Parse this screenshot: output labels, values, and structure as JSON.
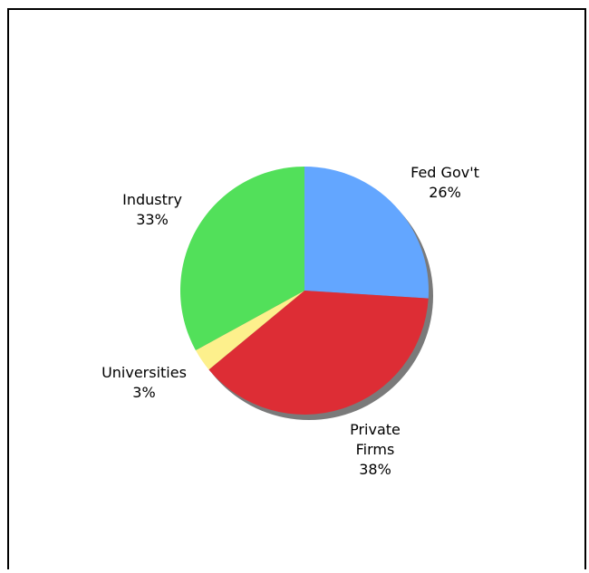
{
  "chart_data": {
    "type": "pie",
    "title": "",
    "shadow": true,
    "legend": "none",
    "slices": [
      {
        "label": "Fed Gov't",
        "label_lines": [
          "Fed Gov't"
        ],
        "value": 26,
        "display": "26%",
        "color": "#63a6ff"
      },
      {
        "label": "Private Firms",
        "label_lines": [
          "Private",
          "Firms"
        ],
        "value": 38,
        "display": "38%",
        "color": "#dd2d35"
      },
      {
        "label": "Universities",
        "label_lines": [
          "Universities"
        ],
        "value": 3,
        "display": "3%",
        "color": "#fdf08c"
      },
      {
        "label": "Industry",
        "label_lines": [
          "Industry"
        ],
        "value": 33,
        "display": "33%",
        "color": "#52e05a"
      }
    ]
  }
}
